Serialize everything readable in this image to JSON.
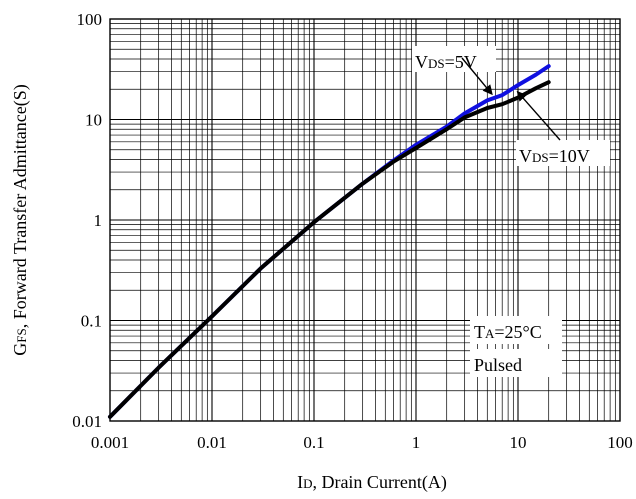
{
  "chart_data": {
    "type": "line",
    "xlabel_main": "I",
    "xlabel_sub": "D",
    "xlabel_rest": ", Drain Current(A)",
    "ylabel_main": "G",
    "ylabel_sub": "FS",
    "ylabel_rest": ", Forward Transfer Admittance(S)",
    "x_scale": "log",
    "y_scale": "log",
    "xlim": [
      0.001,
      100
    ],
    "ylim": [
      0.01,
      100
    ],
    "x_ticks": [
      {
        "value": 0.001,
        "label": "0.001"
      },
      {
        "value": 0.01,
        "label": "0.01"
      },
      {
        "value": 0.1,
        "label": "0.1"
      },
      {
        "value": 1,
        "label": "1"
      },
      {
        "value": 10,
        "label": "10"
      },
      {
        "value": 100,
        "label": "100"
      }
    ],
    "y_ticks": [
      {
        "value": 0.01,
        "label": "0.01"
      },
      {
        "value": 0.1,
        "label": "0.1"
      },
      {
        "value": 1,
        "label": "1"
      },
      {
        "value": 10,
        "label": "10"
      },
      {
        "value": 100,
        "label": "100"
      }
    ],
    "grid": true,
    "series": [
      {
        "name": "VDS=5V",
        "color": "#1010e0",
        "x": [
          0.001,
          0.003,
          0.01,
          0.03,
          0.1,
          0.3,
          0.6,
          1,
          2,
          3,
          5,
          7,
          8,
          10,
          15,
          20
        ],
        "y": [
          0.011,
          0.034,
          0.11,
          0.33,
          0.95,
          2.3,
          3.9,
          5.6,
          8.5,
          11.5,
          15.5,
          17.5,
          19,
          22,
          28,
          34
        ]
      },
      {
        "name": "VDS=10V",
        "color": "#000000",
        "x": [
          0.001,
          0.003,
          0.01,
          0.03,
          0.1,
          0.3,
          0.6,
          1,
          2,
          3,
          5,
          7,
          8,
          10,
          15,
          20
        ],
        "y": [
          0.011,
          0.034,
          0.11,
          0.33,
          0.95,
          2.3,
          3.8,
          5.2,
          8,
          10.5,
          13,
          14.2,
          15,
          16.5,
          20.5,
          23.5
        ]
      }
    ],
    "annotations": [
      {
        "id": "vds5",
        "parts": [
          {
            "text": "V",
            "size": "main"
          },
          {
            "text": "DS",
            "size": "sub"
          },
          {
            "text": "=5V",
            "size": "main"
          }
        ],
        "arrow_to": {
          "x": 5.5,
          "y": 16.5
        }
      },
      {
        "id": "vds10",
        "parts": [
          {
            "text": "V",
            "size": "main"
          },
          {
            "text": "DS",
            "size": "sub"
          },
          {
            "text": "=10V",
            "size": "main"
          }
        ],
        "arrow_to": {
          "x": 10,
          "y": 17
        }
      },
      {
        "id": "ta",
        "parts": [
          {
            "text": "T",
            "size": "main"
          },
          {
            "text": "A",
            "size": "sub"
          },
          {
            "text": "=25°C",
            "size": "main"
          }
        ]
      },
      {
        "id": "pulsed",
        "parts": [
          {
            "text": "Pulsed",
            "size": "main"
          }
        ]
      }
    ]
  }
}
